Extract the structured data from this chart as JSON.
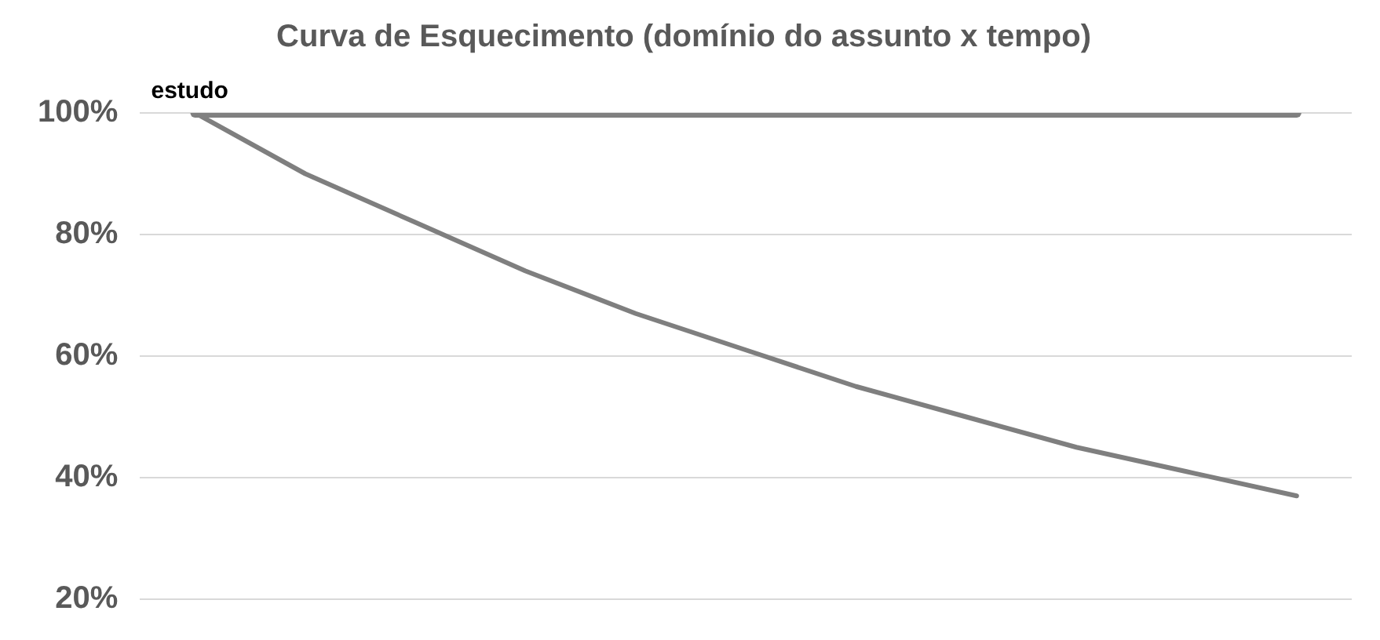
{
  "chart_data": {
    "type": "line",
    "title": "Curva de Esquecimento (domínio do assunto x tempo)",
    "categories": [
      null,
      null,
      null,
      null,
      null,
      null,
      null,
      null,
      null,
      null,
      null
    ],
    "series": [
      {
        "color": "#808080",
        "values": [
          100,
          100,
          100,
          100,
          100,
          100,
          100,
          100,
          100,
          100,
          100
        ]
      },
      {
        "color": "#7f7f7f",
        "values": [
          100,
          90,
          82,
          74,
          67,
          61,
          55,
          50,
          45,
          41,
          37
        ]
      }
    ],
    "annotations": [
      {
        "text": "estudo",
        "y": 100
      }
    ],
    "ylim": [
      20,
      100
    ],
    "yticks": [
      {
        "value": 20,
        "label": "20%"
      },
      {
        "value": 40,
        "label": "40%"
      },
      {
        "value": 60,
        "label": "60%"
      },
      {
        "value": 80,
        "label": "80%"
      },
      {
        "value": 100,
        "label": "100%"
      }
    ],
    "grid": "y",
    "legend": false,
    "marker": "none",
    "tick_labels": "y"
  }
}
